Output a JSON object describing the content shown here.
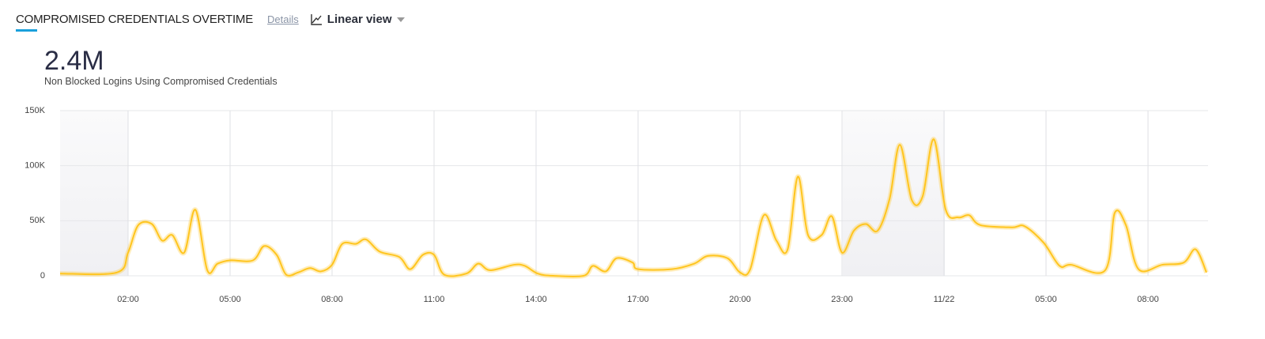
{
  "header": {
    "title": "COMPROMISED CREDENTIALS OVERTIME",
    "details": "Details",
    "view": "Linear view"
  },
  "summary": {
    "value": "2.4M",
    "caption": "Non Blocked Logins Using Compromised Credentials"
  },
  "chart_data": {
    "type": "line",
    "color": "#ffc51f",
    "grid": true,
    "x": [
      0,
      1.67,
      2.0,
      2.3,
      2.7,
      3.0,
      3.3,
      3.65,
      3.98,
      4.33,
      4.63,
      5.0,
      5.67,
      6.0,
      6.37,
      6.65,
      7.0,
      7.35,
      7.67,
      8.0,
      8.3,
      8.7,
      9.0,
      9.4,
      9.98,
      10.3,
      10.67,
      11.0,
      11.3,
      11.95,
      12.3,
      12.65,
      13.35,
      13.67,
      14.05,
      14.5,
      15.4,
      15.67,
      16.05,
      16.37,
      16.84,
      17.0,
      17.99,
      18.65,
      19.05,
      19.63,
      20.0,
      20.3,
      20.7,
      21.07,
      21.4,
      21.7,
      22.0,
      22.4,
      22.7,
      23.0,
      23.35,
      23.7,
      24.05,
      24.4,
      24.7,
      25.05,
      25.37,
      25.7,
      26.05,
      26.42,
      26.74,
      27.07,
      28.0,
      28.37,
      28.93,
      29.4,
      29.74,
      30.74,
      31.02,
      31.35,
      31.72,
      32.42,
      33.05,
      33.4,
      33.72
    ],
    "values": [
      2000,
      3000,
      21000,
      46000,
      47000,
      32000,
      37000,
      21000,
      60000,
      5000,
      11000,
      14000,
      14000,
      27000,
      19000,
      1000,
      3000,
      7000,
      4000,
      10000,
      29000,
      29000,
      33000,
      22000,
      17000,
      6000,
      19000,
      19000,
      1000,
      2000,
      11000,
      5000,
      10000,
      9000,
      2000,
      0,
      0,
      9000,
      4000,
      16000,
      12000,
      6000,
      6000,
      11000,
      18000,
      16000,
      3000,
      6000,
      55000,
      32000,
      24000,
      90000,
      37000,
      37000,
      54000,
      21000,
      41000,
      47000,
      41000,
      70000,
      119000,
      69000,
      72000,
      124000,
      60000,
      53000,
      55000,
      46000,
      44000,
      45000,
      30000,
      9000,
      10000,
      5000,
      57000,
      46000,
      6000,
      10000,
      12000,
      24000,
      3000
    ],
    "xlim": [
      0,
      33.72
    ],
    "xticks": [
      {
        "value": 2,
        "label": "02:00"
      },
      {
        "value": 5,
        "label": "05:00"
      },
      {
        "value": 8,
        "label": "08:00"
      },
      {
        "value": 11,
        "label": "11:00"
      },
      {
        "value": 14,
        "label": "14:00"
      },
      {
        "value": 17,
        "label": "17:00"
      },
      {
        "value": 20,
        "label": "20:00"
      },
      {
        "value": 23,
        "label": "23:00"
      },
      {
        "value": 26,
        "label": "11/22"
      },
      {
        "value": 29,
        "label": "05:00"
      },
      {
        "value": 32,
        "label": "08:00"
      }
    ],
    "ylim": [
      0,
      150000
    ],
    "yticks": [
      0,
      {
        "value": 50000,
        "label": "50K"
      },
      {
        "value": 100000,
        "label": "100K"
      },
      {
        "value": 150000,
        "label": "150K"
      }
    ]
  }
}
